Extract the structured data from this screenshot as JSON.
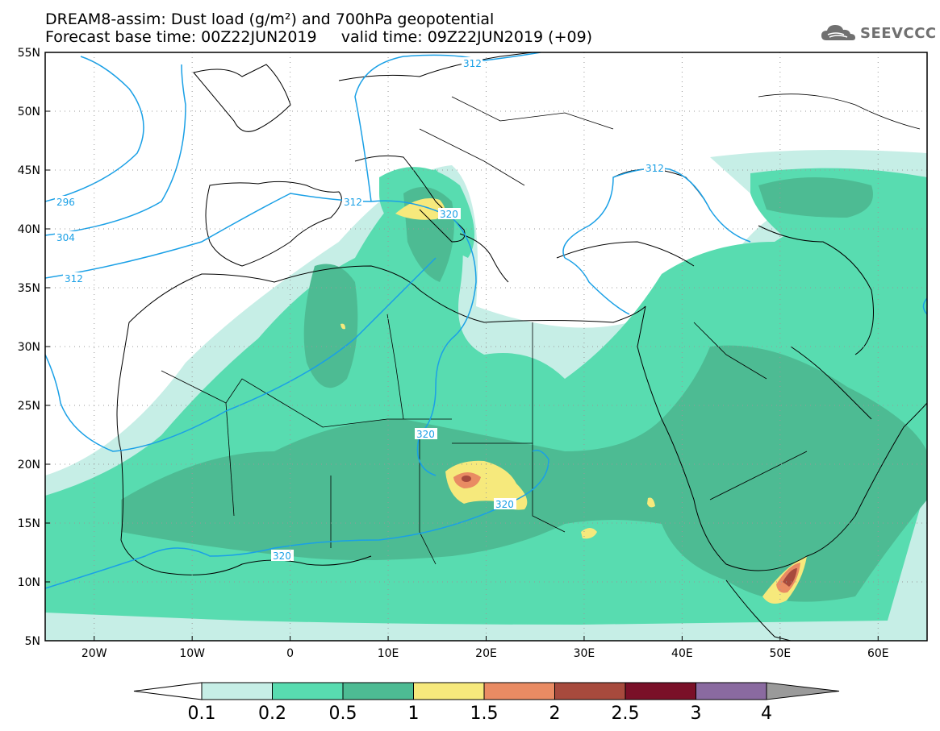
{
  "header": {
    "title_line1": "DREAM8-assim: Dust load (g/m²) and 700hPa geopotential",
    "title_line2": "Forecast base time: 00Z22JUN2019     valid time: 09Z22JUN2019 (+09)",
    "logo_text": "SEEVCCC",
    "logo_icon": "cloud-icon"
  },
  "map": {
    "lat_labels": [
      "55N",
      "50N",
      "45N",
      "40N",
      "35N",
      "30N",
      "25N",
      "20N",
      "15N",
      "10N",
      "5N"
    ],
    "lon_labels": [
      "20W",
      "10W",
      "0",
      "10E",
      "20E",
      "30E",
      "40E",
      "50E",
      "60E"
    ],
    "lat_values": [
      55,
      50,
      45,
      40,
      35,
      30,
      25,
      20,
      15,
      10,
      5
    ],
    "lon_values": [
      -20,
      -10,
      0,
      10,
      20,
      30,
      40,
      50,
      60
    ],
    "extent": {
      "lon_min": -25,
      "lon_max": 65,
      "lat_min": 5,
      "lat_max": 55
    },
    "contour_labels": [
      "296",
      "304",
      "312",
      "312",
      "312",
      "312",
      "320",
      "320",
      "320",
      "320"
    ]
  },
  "colorbar": {
    "ticks": [
      "0.1",
      "0.2",
      "0.5",
      "1",
      "1.5",
      "2",
      "2.5",
      "3",
      "4"
    ],
    "colors": [
      "#ffffff",
      "#c6eee6",
      "#58dcb0",
      "#4dbb93",
      "#f6e97c",
      "#e98b63",
      "#a74a3d",
      "#7a1028",
      "#8a6aa0",
      "#9a9a9a"
    ]
  },
  "colors": {
    "contour": "#1aa0e6",
    "coast": "#000000",
    "dust_low": "#c6eee6",
    "dust_mid": "#58dcb0",
    "dust_high": "#4dbb93"
  }
}
